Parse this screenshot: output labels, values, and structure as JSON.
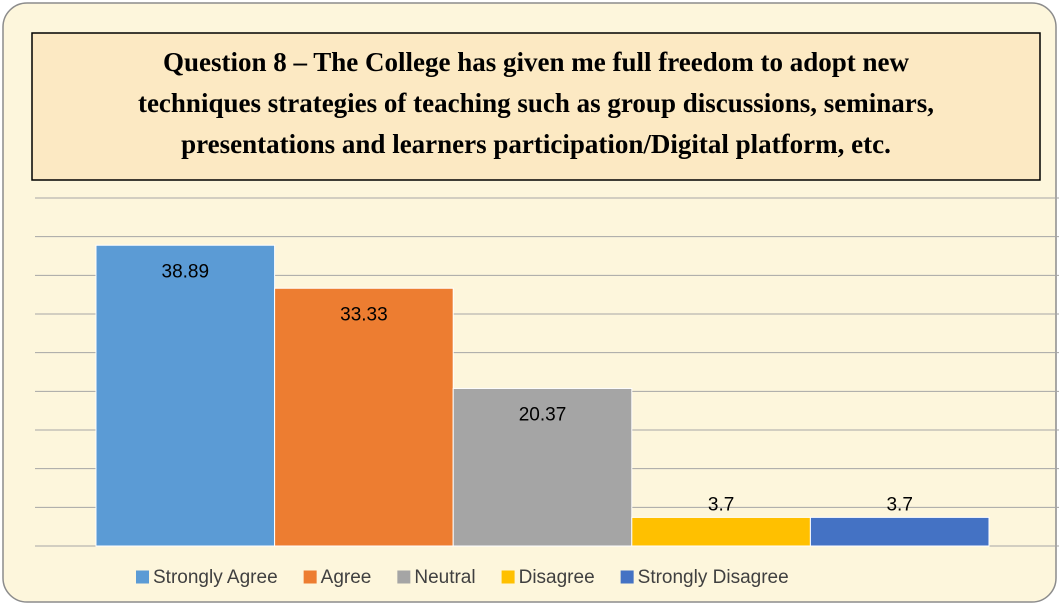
{
  "chart_data": {
    "type": "bar",
    "title": [
      "Question 8 – The College has given me full freedom to adopt new",
      "techniques strategies of teaching such as group discussions, seminars,",
      "presentations and learners participation/Digital platform, etc."
    ],
    "categories": [
      "Strongly Agree",
      "Agree",
      "Neutral",
      "Disagree",
      "Strongly Disagree"
    ],
    "values": [
      38.89,
      33.33,
      20.37,
      3.7,
      3.7
    ],
    "colors": [
      "#5b9bd5",
      "#ed7d31",
      "#a5a5a5",
      "#ffc000",
      "#4472c4"
    ],
    "ylim": [
      0,
      45
    ],
    "yticks": [
      0,
      5,
      10,
      15,
      20,
      25,
      30,
      35,
      40,
      45
    ],
    "grid": true,
    "legend": "bottom"
  }
}
